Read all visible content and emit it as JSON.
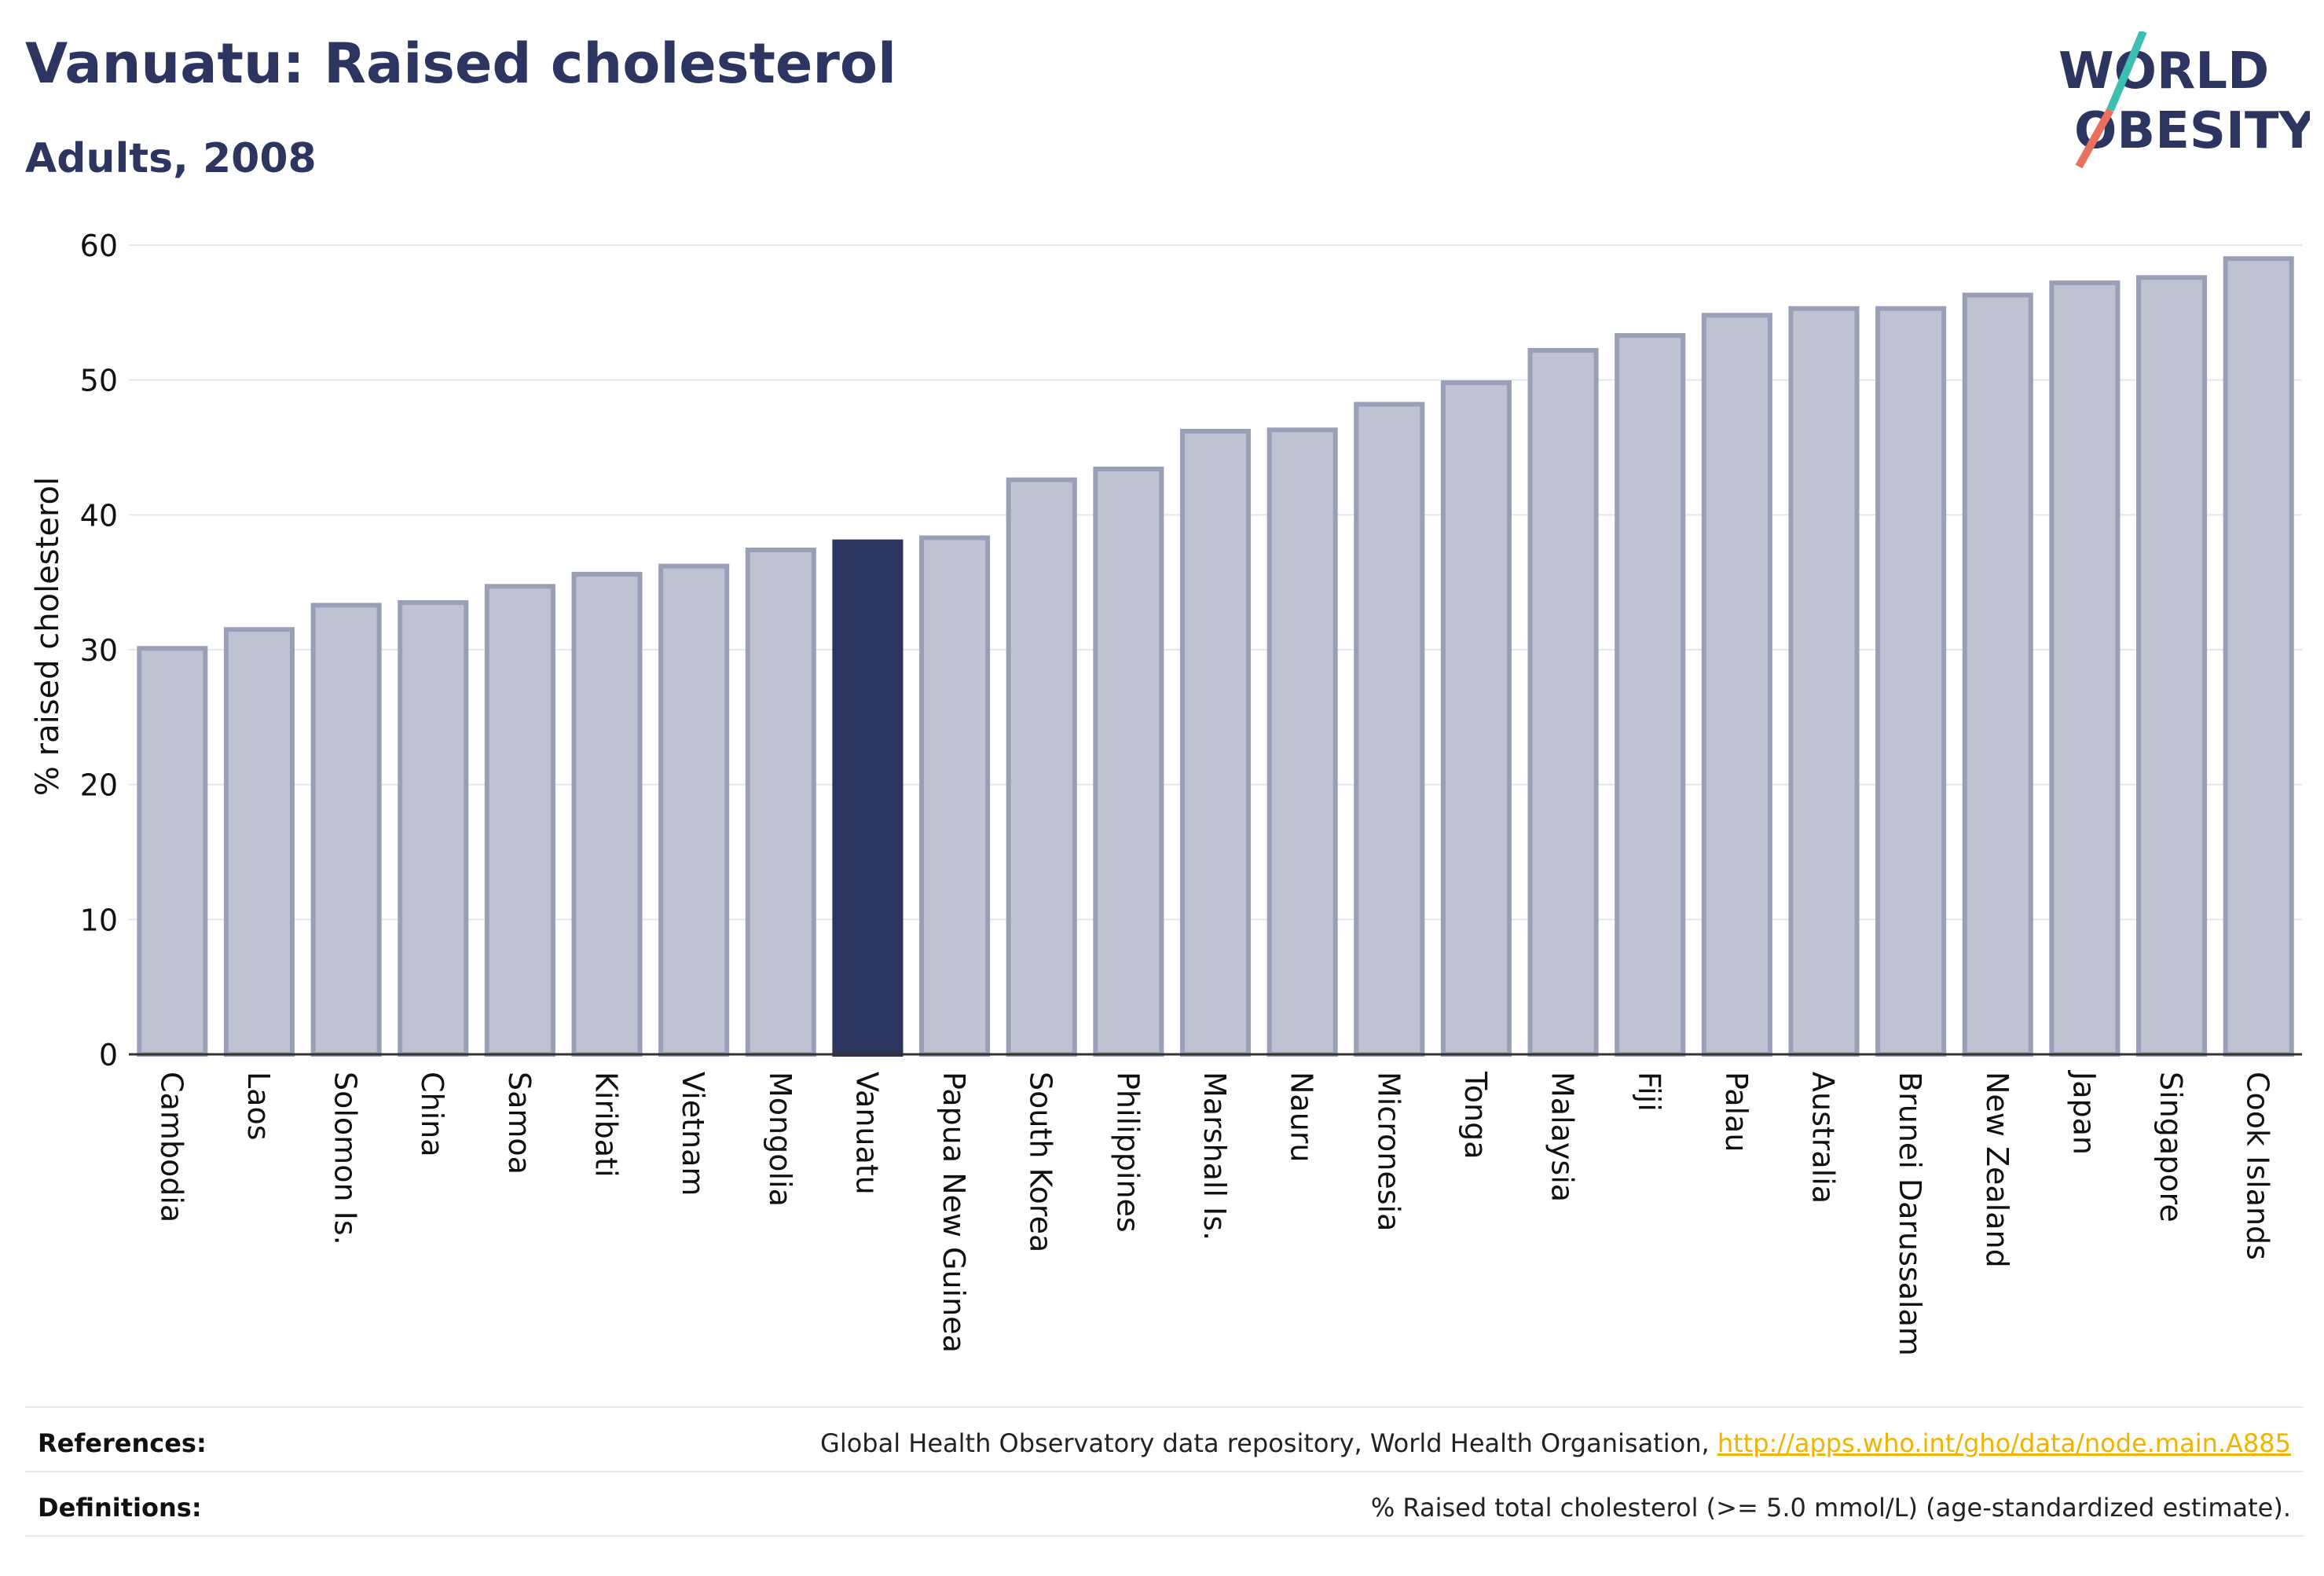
{
  "title": "Vanuatu: Raised cholesterol",
  "subtitle": "Adults, 2008",
  "logo": {
    "line1": "WORLD",
    "line2": "OBESITY",
    "accent_teal": "#3bbfb0",
    "accent_coral": "#e8705e"
  },
  "colors": {
    "bar": "#bfc2d0",
    "bar_stroke": "#9a9fb8",
    "highlight": "#2b3560",
    "axis": "#333333",
    "grid": "#e4e6ee"
  },
  "chart_data": {
    "type": "bar",
    "ylabel": "% raised cholesterol",
    "ylim": [
      0,
      60
    ],
    "yticks": [
      0,
      10,
      20,
      30,
      40,
      50,
      60
    ],
    "grid": true,
    "highlight": "Vanuatu",
    "categories": [
      "Cambodia",
      "Laos",
      "Solomon Is.",
      "China",
      "Samoa",
      "Kiribati",
      "Vietnam",
      "Mongolia",
      "Vanuatu",
      "Papua New Guinea",
      "South Korea",
      "Philippines",
      "Marshall Is.",
      "Nauru",
      "Micronesia",
      "Tonga",
      "Malaysia",
      "Fiji",
      "Palau",
      "Australia",
      "Brunei Darussalam",
      "New Zealand",
      "Japan",
      "Singapore",
      "Cook Islands"
    ],
    "values": [
      30.1,
      31.5,
      33.3,
      33.5,
      34.7,
      35.6,
      36.2,
      37.4,
      38.0,
      38.3,
      42.6,
      43.4,
      46.2,
      46.3,
      48.2,
      49.8,
      52.2,
      53.3,
      54.8,
      55.3,
      55.3,
      56.3,
      57.2,
      57.6,
      59.0
    ]
  },
  "footer": {
    "references_label": "References:",
    "references_text": "Global Health Observatory data repository, World Health Organisation, ",
    "references_link": "http://apps.who.int/gho/data/node.main.A885",
    "definitions_label": "Definitions:",
    "definitions_text": "% Raised total cholesterol (>= 5.0 mmol/L) (age-standardized estimate)."
  }
}
